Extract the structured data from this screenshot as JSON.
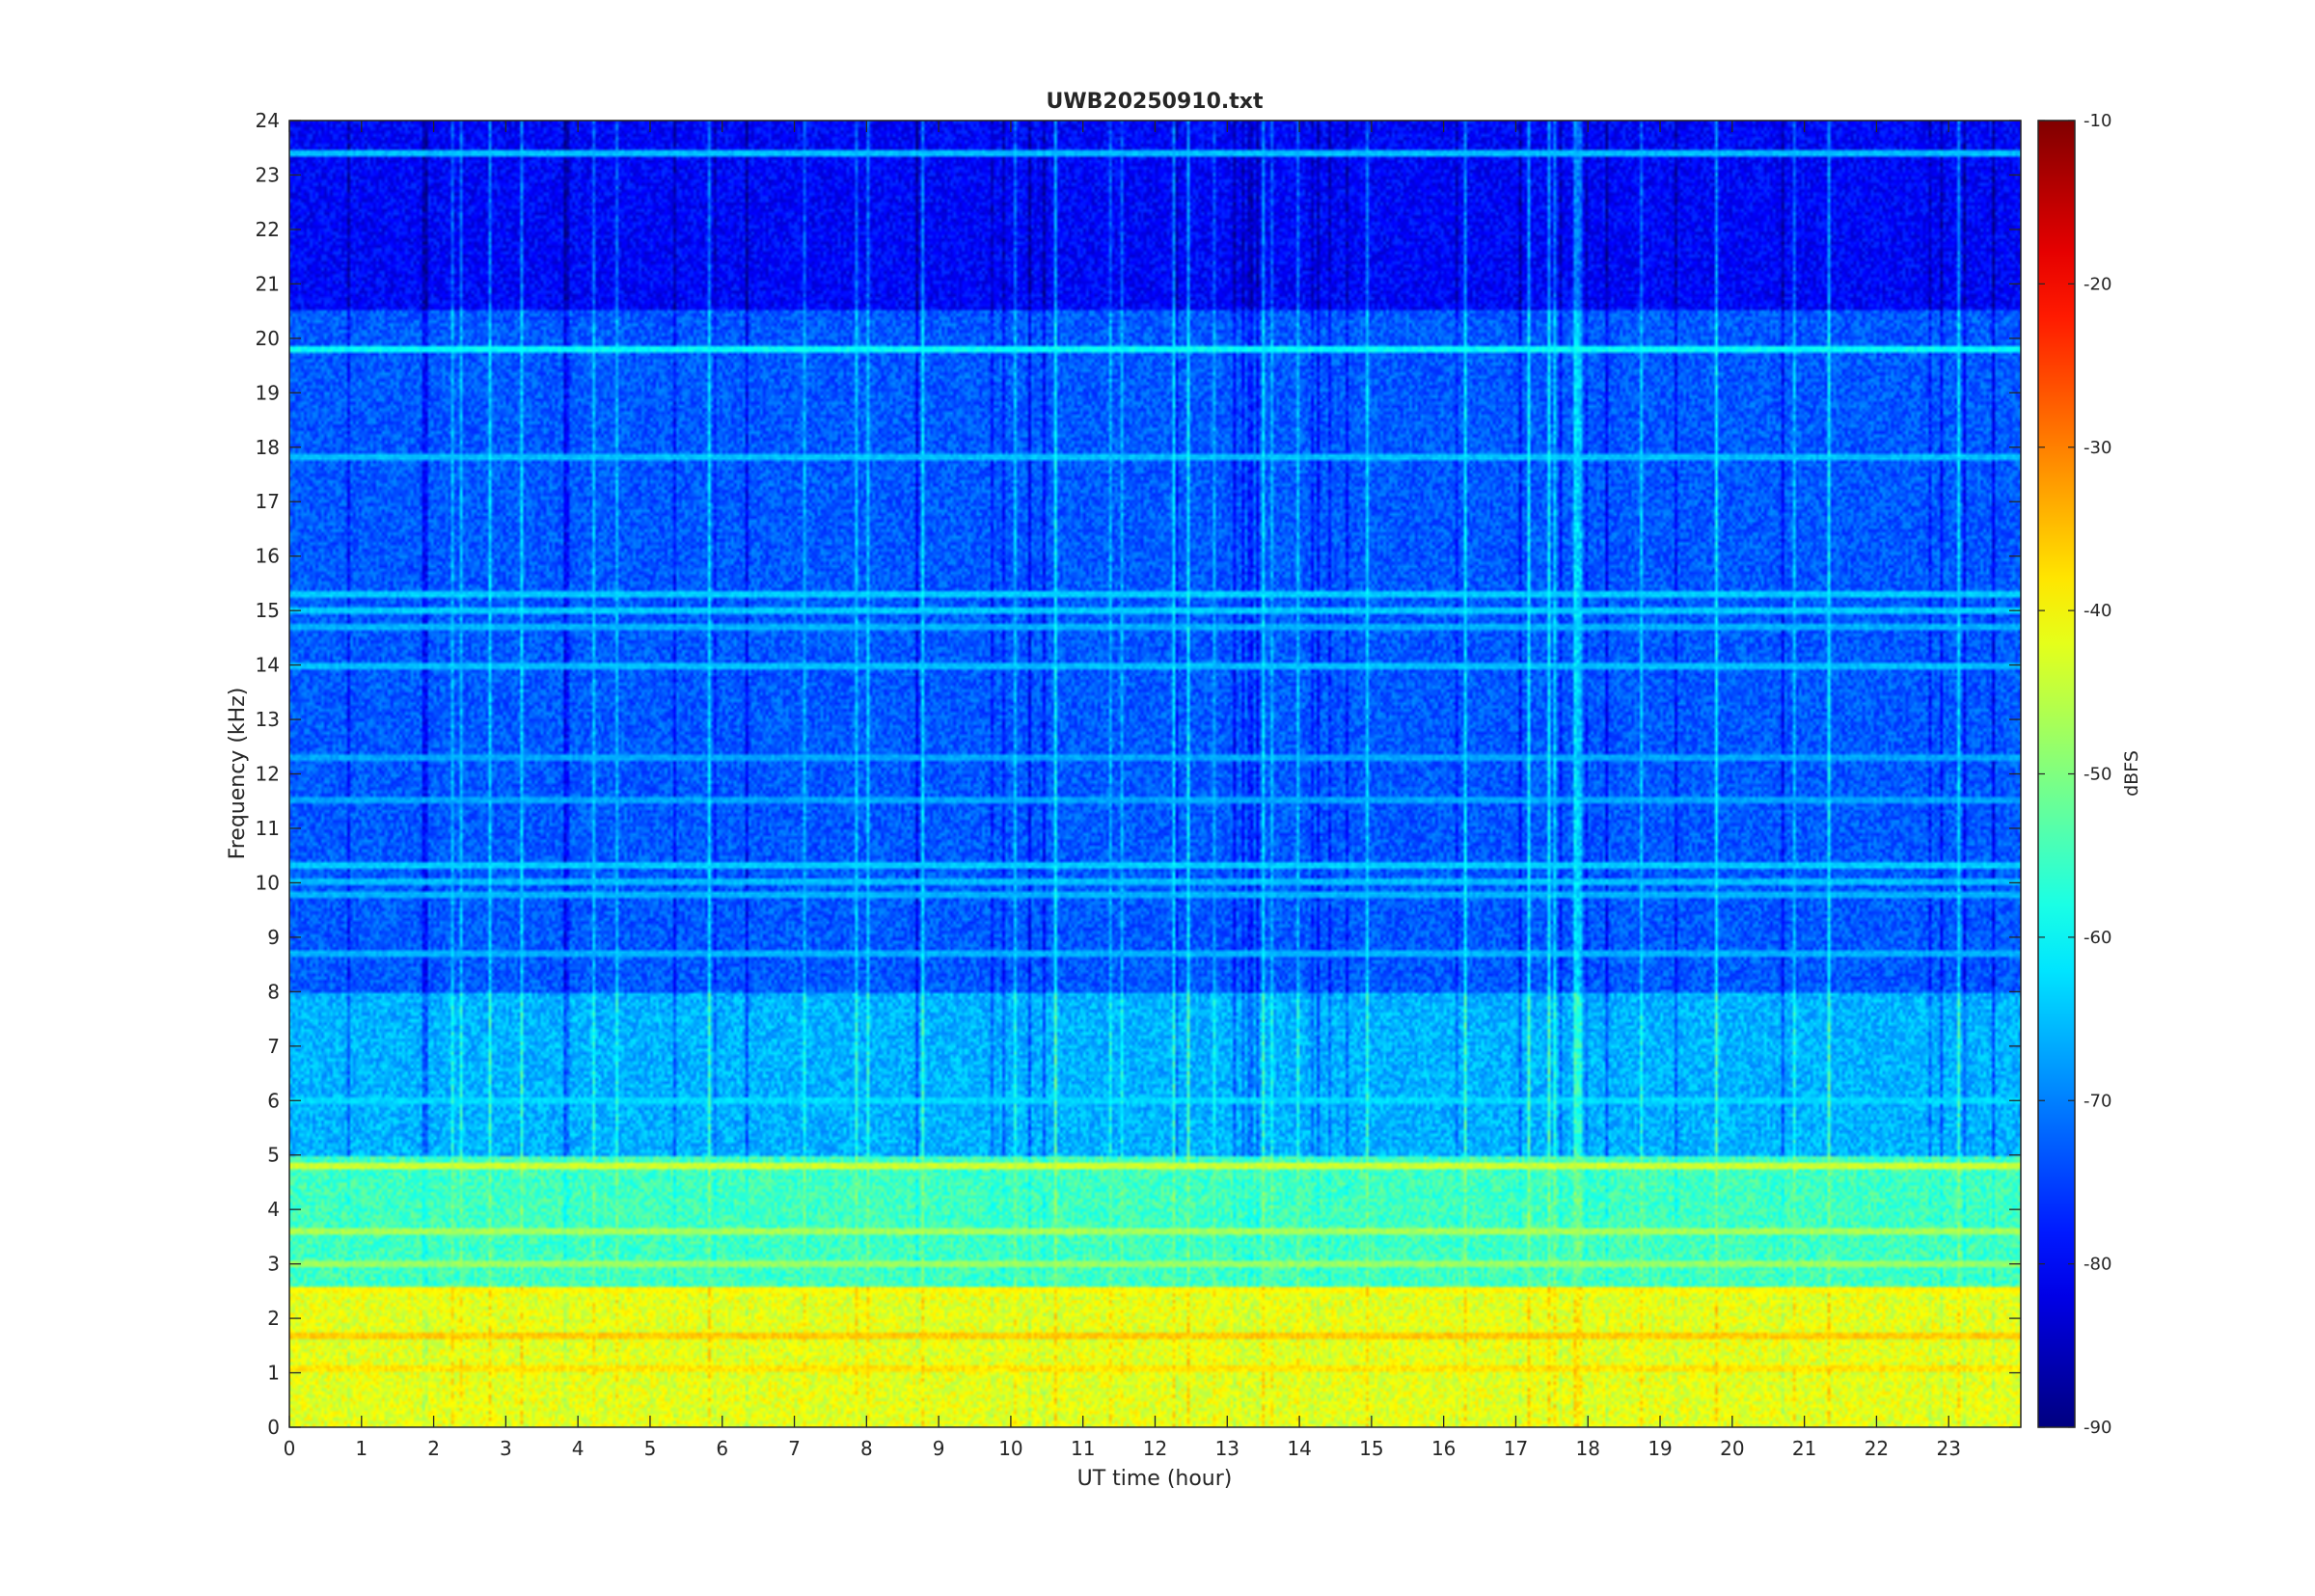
{
  "chart_data": {
    "type": "heatmap",
    "title": "UWB20250910.txt",
    "xlabel": "UT time (hour)",
    "ylabel": "Frequency (kHz)",
    "xlim": [
      0,
      24
    ],
    "ylim": [
      0,
      24
    ],
    "x_ticks": [
      "0",
      "1",
      "2",
      "3",
      "4",
      "5",
      "6",
      "7",
      "8",
      "9",
      "10",
      "11",
      "12",
      "13",
      "14",
      "15",
      "16",
      "17",
      "18",
      "19",
      "20",
      "21",
      "22",
      "23"
    ],
    "y_ticks": [
      "0",
      "1",
      "2",
      "3",
      "4",
      "5",
      "6",
      "7",
      "8",
      "9",
      "10",
      "11",
      "12",
      "13",
      "14",
      "15",
      "16",
      "17",
      "18",
      "19",
      "20",
      "21",
      "22",
      "23",
      "24"
    ],
    "colormap": "jet",
    "colorbar": {
      "label": "dBFS",
      "range": [
        -90,
        -10
      ],
      "ticks": [
        "-10",
        "-20",
        "-30",
        "-40",
        "-50",
        "-60",
        "-70",
        "-80",
        "-90"
      ]
    },
    "description_bands": [
      {
        "freq_khz": [
          0,
          2.6
        ],
        "level_dbfs": -42
      },
      {
        "freq_khz": [
          2.6,
          5
        ],
        "level_dbfs": -55
      },
      {
        "freq_khz": [
          5,
          8
        ],
        "level_dbfs": -66
      },
      {
        "freq_khz": [
          8,
          20.5
        ],
        "level_dbfs": -73
      },
      {
        "freq_khz": [
          20.5,
          24
        ],
        "level_dbfs": -80
      }
    ],
    "tone_lines_khz": [
      {
        "freq": 19.8,
        "level_dbfs": -60
      },
      {
        "freq": 23.4,
        "level_dbfs": -65
      },
      {
        "freq": 17.8,
        "level_dbfs": -65
      },
      {
        "freq": 15.3,
        "level_dbfs": -64
      },
      {
        "freq": 15.0,
        "level_dbfs": -64
      },
      {
        "freq": 14.7,
        "level_dbfs": -66
      },
      {
        "freq": 14.0,
        "level_dbfs": -65
      },
      {
        "freq": 12.3,
        "level_dbfs": -67
      },
      {
        "freq": 11.5,
        "level_dbfs": -67
      },
      {
        "freq": 10.3,
        "level_dbfs": -64
      },
      {
        "freq": 10.0,
        "level_dbfs": -65
      },
      {
        "freq": 9.8,
        "level_dbfs": -66
      },
      {
        "freq": 8.7,
        "level_dbfs": -66
      },
      {
        "freq": 6.0,
        "level_dbfs": -63
      },
      {
        "freq": 4.8,
        "level_dbfs": -44
      },
      {
        "freq": 3.6,
        "level_dbfs": -47
      },
      {
        "freq": 3.0,
        "level_dbfs": -48
      },
      {
        "freq": 2.5,
        "level_dbfs": -40
      },
      {
        "freq": 1.7,
        "level_dbfs": -36
      },
      {
        "freq": 1.1,
        "level_dbfs": -38
      }
    ]
  },
  "colors": {
    "axis": "#262626",
    "background": "#ffffff"
  }
}
